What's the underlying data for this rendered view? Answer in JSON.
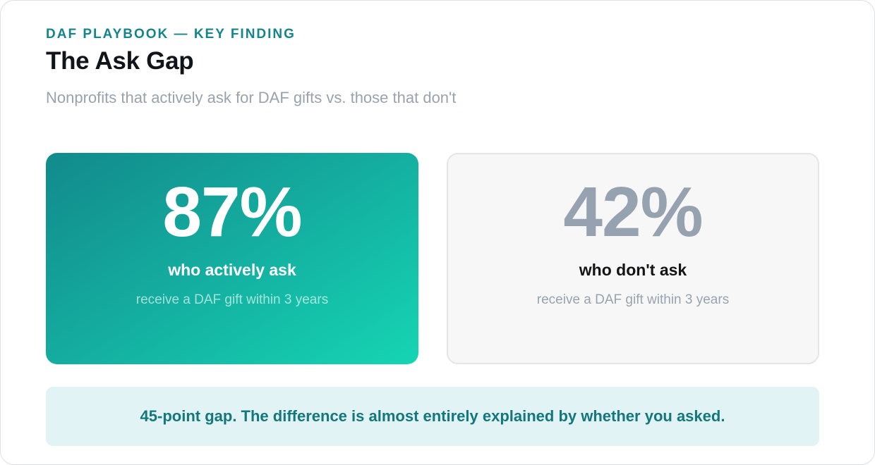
{
  "header": {
    "eyebrow": "DAF PLAYBOOK — KEY FINDING",
    "title": "The Ask Gap",
    "subtitle": "Nonprofits that actively ask for DAF gifts vs. those that don't"
  },
  "cards": [
    {
      "stat": "87%",
      "label": "who actively ask",
      "sub": "receive a DAF gift within 3 years"
    },
    {
      "stat": "42%",
      "label": "who don't ask",
      "sub": "receive a DAF gift within 3 years"
    }
  ],
  "banner": {
    "text": "45-point gap. The difference is almost entirely explained by whether you asked."
  },
  "colors": {
    "accent": "#148589",
    "gradient_start": "#128a8c",
    "gradient_end": "#15d5b3",
    "muted_stat": "#96a2b0",
    "banner_bg": "#e1f3f5"
  }
}
